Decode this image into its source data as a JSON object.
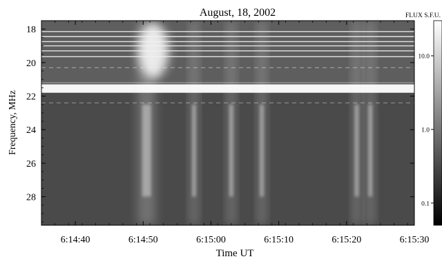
{
  "chart_data": {
    "type": "heatmap",
    "subtype": "radio dynamic spectrum",
    "title": "August, 18, 2002",
    "xlabel": "Time UT",
    "ylabel": "Frequency, MHz",
    "colorbar_label": "FLUX S.F.U.",
    "x_range": [
      "6:14:35",
      "6:15:30"
    ],
    "x_ticks": [
      "6:14:40",
      "6:14:50",
      "6:15:00",
      "6:15:10",
      "6:15:20",
      "6:15:30"
    ],
    "x_tick_seconds": [
      40,
      50,
      60,
      70,
      80,
      90
    ],
    "x_range_seconds": [
      35,
      90
    ],
    "y_range": [
      17.5,
      29.7
    ],
    "y_inverted": true,
    "y_ticks": [
      18,
      20,
      22,
      24,
      26,
      28
    ],
    "colorbar": {
      "scale": "log",
      "range": [
        0.05,
        30
      ],
      "ticks": [
        10.0,
        1.0,
        0.1
      ],
      "tick_labels": [
        "10.0",
        "1.0",
        "0.1"
      ],
      "colormap": "grayscale"
    },
    "features": {
      "interference_band_mhz": [
        21.3,
        21.8
      ],
      "bright_emission_times_s": [
        50.5,
        57.5,
        63,
        67.5,
        81.5,
        83.5
      ],
      "interference_lines_mhz": [
        18.15,
        18.45,
        18.75,
        19.0,
        19.3,
        19.65,
        20.3,
        21.2,
        22.4
      ]
    }
  }
}
